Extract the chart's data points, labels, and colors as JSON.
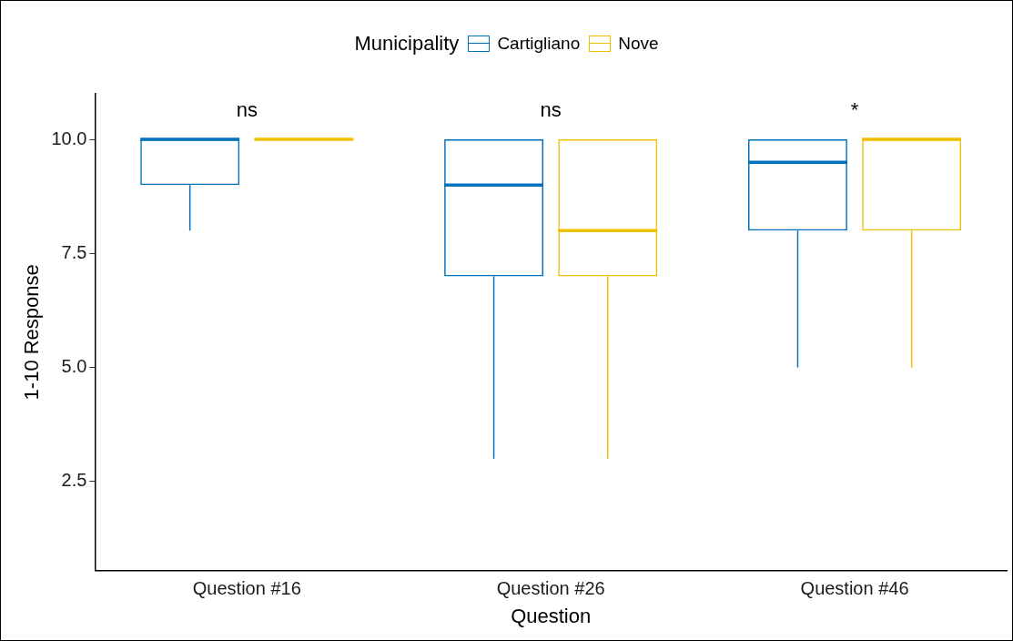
{
  "chart_data": {
    "type": "box",
    "xlabel": "Question",
    "ylabel": "1-10 Response",
    "legend_title": "Municipality",
    "legend": "top",
    "categories": [
      "Question #16",
      "Question #26",
      "Question #46"
    ],
    "series": [
      {
        "name": "Cartigliano",
        "color": "#0072bd",
        "boxes": [
          {
            "low": 8,
            "q1": 9,
            "median": 10,
            "q3": 10,
            "high": 10
          },
          {
            "low": 3,
            "q1": 7,
            "median": 9,
            "q3": 10,
            "high": 10
          },
          {
            "low": 5,
            "q1": 8,
            "median": 9.5,
            "q3": 10,
            "high": 10
          }
        ]
      },
      {
        "name": "Nove",
        "color": "#efc000",
        "boxes": [
          {
            "low": 10,
            "q1": 10,
            "median": 10,
            "q3": 10,
            "high": 10
          },
          {
            "low": 3,
            "q1": 7,
            "median": 8,
            "q3": 10,
            "high": 10
          },
          {
            "low": 5,
            "q1": 8,
            "median": 10,
            "q3": 10,
            "high": 10
          }
        ]
      }
    ],
    "ylim": [
      0.55,
      11
    ],
    "yticks": [
      {
        "value": 2.5,
        "label": "2.5"
      },
      {
        "value": 5,
        "label": "5.0"
      },
      {
        "value": 7.5,
        "label": "7.5"
      },
      {
        "value": 10,
        "label": "10.0"
      }
    ],
    "annotations": [
      "ns",
      "ns",
      "*"
    ]
  }
}
